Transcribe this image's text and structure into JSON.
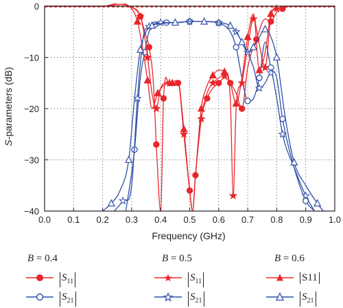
{
  "chart_data": {
    "type": "line",
    "xlabel": "Frequency (GHz)",
    "ylabel_italic": "S",
    "ylabel_rest": "-parameters (dB)",
    "xlim": [
      0.0,
      1.0
    ],
    "ylim": [
      -40,
      0
    ],
    "xticks": [
      "0.0",
      "0.1",
      "0.2",
      "0.3",
      "0.4",
      "0.5",
      "0.6",
      "0.7",
      "0.8",
      "0.9",
      "1.0"
    ],
    "yticks": [
      "0",
      "−10",
      "−20",
      "−30",
      "−40"
    ],
    "grid": true,
    "colors": {
      "s11": "#e8262b",
      "s21": "#2f4fa8"
    },
    "series": [
      {
        "name": "|S11|",
        "group": "B = 0.4",
        "param": "S11",
        "marker": "circle",
        "color": "#e8262b",
        "x": [
          0.0,
          0.2,
          0.3,
          0.33,
          0.345,
          0.36,
          0.375,
          0.385,
          0.4,
          0.41,
          0.43,
          0.46,
          0.48,
          0.5,
          0.51,
          0.52,
          0.54,
          0.56,
          0.58,
          0.6,
          0.62,
          0.64,
          0.66,
          0.68,
          0.7,
          0.73,
          0.76,
          0.78,
          0.8,
          0.82,
          0.85,
          1.0
        ],
        "y": [
          0,
          0,
          -0.2,
          -2,
          -5,
          -8,
          -15,
          -27,
          -40,
          -18,
          -15.5,
          -15,
          -25,
          -36,
          -40,
          -33,
          -22,
          -18,
          -16,
          -15,
          -14,
          -15,
          -17,
          -20,
          -12,
          -6.5,
          -2.5,
          -3,
          -1.2,
          -0.5,
          0,
          0
        ]
      },
      {
        "name": "|S21|",
        "group": "B = 0.4",
        "param": "S21",
        "marker": "circle",
        "color": "#2f4fa8",
        "x": [
          0.28,
          0.31,
          0.33,
          0.345,
          0.36,
          0.38,
          0.4,
          0.42,
          0.46,
          0.5,
          0.55,
          0.6,
          0.64,
          0.66,
          0.68,
          0.7,
          0.72,
          0.74,
          0.76,
          0.78,
          0.8,
          0.82,
          0.85,
          0.9,
          0.93
        ],
        "y": [
          -40,
          -28,
          -14,
          -9,
          -5,
          -3.6,
          -3.3,
          -3.2,
          -3.2,
          -3.0,
          -3.0,
          -3.3,
          -5,
          -8,
          -14,
          -18.5,
          -18,
          -14,
          -7,
          -12,
          -14,
          -22,
          -29.5,
          -38,
          -40
        ]
      },
      {
        "name": "|S11|",
        "group": "B = 0.5",
        "param": "S11",
        "marker": "star",
        "color": "#e8262b",
        "x": [
          0.0,
          0.2,
          0.3,
          0.33,
          0.345,
          0.355,
          0.37,
          0.385,
          0.4,
          0.43,
          0.46,
          0.48,
          0.5,
          0.51,
          0.52,
          0.54,
          0.56,
          0.58,
          0.6,
          0.62,
          0.64,
          0.65,
          0.66,
          0.68,
          0.7,
          0.72,
          0.74,
          0.76,
          0.78,
          0.8,
          0.82,
          0.85,
          1.0
        ],
        "y": [
          0,
          0,
          -0.2,
          -2,
          -6,
          -10,
          -17,
          -20,
          -16,
          -15,
          -14.5,
          -25,
          -36,
          -40,
          -33,
          -22,
          -17,
          -15,
          -14,
          -13.5,
          -18,
          -37,
          -20,
          -15,
          -8,
          -2.5,
          -7.5,
          -12,
          -2,
          -0.5,
          -0.2,
          0,
          0
        ]
      },
      {
        "name": "|S21|",
        "group": "B = 0.5",
        "param": "S21",
        "marker": "star",
        "color": "#2f4fa8",
        "x": [
          0.24,
          0.27,
          0.3,
          0.32,
          0.34,
          0.36,
          0.38,
          0.4,
          0.45,
          0.5,
          0.55,
          0.6,
          0.64,
          0.66,
          0.68,
          0.7,
          0.72,
          0.74,
          0.76,
          0.78,
          0.8,
          0.82,
          0.86,
          0.9,
          0.93
        ],
        "y": [
          -40,
          -38,
          -35,
          -18,
          -6,
          -4,
          -3.4,
          -3.2,
          -3.2,
          -3.0,
          -3.0,
          -3.2,
          -3.8,
          -5,
          -7,
          -9,
          -12,
          -16,
          -15,
          -13,
          -18,
          -25,
          -31.5,
          -37,
          -40
        ]
      },
      {
        "name": "|S11|",
        "group": "B = 0.6",
        "param": "S11",
        "marker": "triangle",
        "color": "#e8262b",
        "x": [
          0.0,
          0.2,
          0.3,
          0.32,
          0.34,
          0.355,
          0.37,
          0.39,
          0.41,
          0.44,
          0.46,
          0.48,
          0.5,
          0.51,
          0.52,
          0.54,
          0.56,
          0.58,
          0.6,
          0.62,
          0.64,
          0.66,
          0.68,
          0.7,
          0.72,
          0.74,
          0.76,
          0.78,
          0.8,
          0.82,
          0.85,
          1.0
        ],
        "y": [
          0,
          0,
          -0.5,
          -3,
          -9,
          -14.5,
          -20,
          -17,
          -15.5,
          -15,
          -15,
          -24,
          -36,
          -40,
          -33,
          -20,
          -15.5,
          -13.5,
          -12.5,
          -12.8,
          -15,
          -19,
          -14,
          -6,
          -1.5,
          -12.5,
          -9,
          -1.5,
          -0.5,
          -0.2,
          0,
          0
        ]
      },
      {
        "name": "|S21|",
        "group": "B = 0.6",
        "param": "S21",
        "marker": "triangle",
        "color": "#2f4fa8",
        "x": [
          0.2,
          0.23,
          0.26,
          0.29,
          0.31,
          0.33,
          0.35,
          0.37,
          0.4,
          0.45,
          0.5,
          0.55,
          0.6,
          0.64,
          0.66,
          0.68,
          0.7,
          0.72,
          0.74,
          0.76,
          0.78,
          0.8,
          0.83,
          0.86,
          0.9,
          0.94,
          0.96
        ],
        "y": [
          -40,
          -38.5,
          -36,
          -30,
          -18,
          -8.5,
          -5,
          -3.8,
          -3.4,
          -3.2,
          -3.0,
          -3.0,
          -3.2,
          -3.8,
          -5,
          -7,
          -9,
          -8,
          -6,
          -4.5,
          -6,
          -10,
          -22,
          -30.5,
          -35,
          -38.5,
          -40
        ]
      }
    ]
  },
  "legend": {
    "groups": [
      {
        "title_var": "B",
        "title_rest": " = 0.4",
        "s11": {
          "lead": "|",
          "base": "S",
          "sub": "11",
          "tail": "|"
        },
        "s21": {
          "lead": "|",
          "base": "S",
          "sub": "21",
          "tail": "|"
        }
      },
      {
        "title_var": "B",
        "title_rest": " = 0.5",
        "s11": {
          "lead": "|",
          "base": "S",
          "sub": "11",
          "tail": "|"
        },
        "s21": {
          "lead": "|",
          "base": "S",
          "sub": "21",
          "tail": "|"
        }
      },
      {
        "title_var": "B",
        "title_rest": " = 0.6",
        "s11": {
          "lead": "|",
          "base": "S11",
          "sub": "",
          "tail": "|"
        },
        "s21": {
          "lead": "|",
          "base": "S",
          "sub": "21",
          "tail": "|"
        }
      }
    ]
  }
}
